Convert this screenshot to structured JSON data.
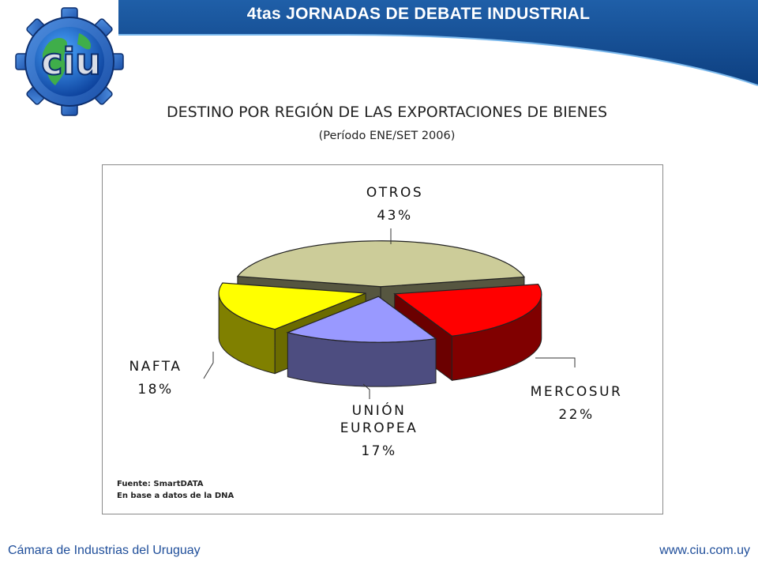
{
  "header": {
    "title": "4tas JORNADAS DE DEBATE INDUSTRIAL"
  },
  "logo": {
    "text": "ciu"
  },
  "slide": {
    "title": "DESTINO POR REGIÓN DE LAS EXPORTACIONES DE BIENES",
    "subtitle": "(Período ENE/SET 2006)"
  },
  "chart_data": {
    "type": "pie",
    "style": "3d-exploded",
    "title": "",
    "slices": [
      {
        "name": "OTROS",
        "value": 43,
        "label": "43%",
        "color": "#cccc99"
      },
      {
        "name": "MERCOSUR",
        "value": 22,
        "label": "22%",
        "color": "#ff0000"
      },
      {
        "name": "UNIÓN EUROPEA",
        "value": 17,
        "label": "17%",
        "color": "#9999ff"
      },
      {
        "name": "NAFTA",
        "value": 18,
        "label": "18%",
        "color": "#ffff00"
      }
    ],
    "slice_label_lines": {
      "OTROS": [
        "OTROS"
      ],
      "MERCOSUR": [
        "MERCOSUR"
      ],
      "UNIÓN EUROPEA": [
        "UNIÓN",
        "EUROPEA"
      ],
      "NAFTA": [
        "NAFTA"
      ]
    },
    "source": [
      "Fuente: SmartDATA",
      "En base a datos de la DNA"
    ]
  },
  "footer": {
    "left": "Cámara de Industrias del Uruguay",
    "right": "www.ciu.com.uy"
  }
}
